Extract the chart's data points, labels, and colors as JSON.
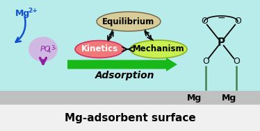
{
  "bg_color": "#b8ecea",
  "surface_color": "#c0c0c0",
  "bottom_bg": "#f0f0f0",
  "title_text": "Mg-adsorbent surface",
  "mg2_text": "Mg",
  "mg2_sup": "2+",
  "po4_label": "PO",
  "po4_sub": "4",
  "po4_sup": "3-",
  "equilibrium_text": "Equilibrium",
  "kinetics_text": "Kinetics",
  "mechanism_text": "Mechanism",
  "adsorption_text": "Adsorption",
  "mg_text": "Mg",
  "equilibrium_color": "#d8cc98",
  "kinetics_color": "#f07878",
  "mechanism_color": "#c8f050",
  "po4_bg_color": "#d8a8e0",
  "arrow_green": "#18b818",
  "mg2_color": "#1050d0",
  "po4_color": "#9020a0",
  "arrow_color": "#101010",
  "p_color": "#101010",
  "o_color": "#101010",
  "bond_color": "#202020",
  "stem_color": "#408050"
}
